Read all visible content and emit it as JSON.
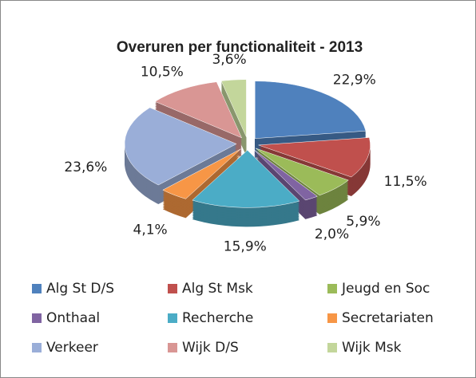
{
  "chart_data": {
    "type": "pie",
    "title": "Overuren per functionaliteit - 2013",
    "categories": [
      "Alg St D/S",
      "Alg St Msk",
      "Jeugd en Soc",
      "Onthaal",
      "Recherche",
      "Secretariaten",
      "Verkeer",
      "Wijk D/S",
      "Wijk Msk"
    ],
    "values": [
      22.9,
      11.5,
      5.9,
      2.0,
      15.9,
      4.1,
      23.6,
      10.5,
      3.6
    ],
    "value_labels": [
      "22,9%",
      "11,5%",
      "5,9%",
      "2,0%",
      "15,9%",
      "4,1%",
      "23,6%",
      "10,5%",
      "3,6%"
    ],
    "colors": [
      "#4f81bd",
      "#c0504d",
      "#9bbb59",
      "#8064a2",
      "#4bacc6",
      "#f79646",
      "#9aaed8",
      "#d99694",
      "#c3d69b"
    ],
    "legend": "bottom"
  }
}
